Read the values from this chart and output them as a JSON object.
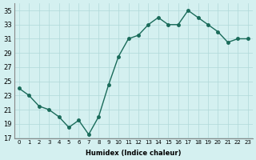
{
  "x": [
    0,
    1,
    2,
    3,
    4,
    5,
    6,
    7,
    8,
    9,
    10,
    11,
    12,
    13,
    14,
    15,
    16,
    17,
    18,
    19,
    20,
    21,
    22,
    23
  ],
  "y": [
    24.0,
    23.0,
    21.5,
    21.0,
    20.0,
    18.5,
    19.5,
    17.5,
    20.0,
    24.5,
    28.5,
    31.0,
    31.5,
    33.0,
    34.0,
    33.0,
    33.0,
    35.0,
    34.0,
    33.0,
    32.0,
    30.5,
    31.0,
    31.0
  ],
  "xlabel": "Humidex (Indice chaleur)",
  "ylim": [
    17,
    36
  ],
  "xlim": [
    -0.5,
    23.5
  ],
  "yticks": [
    17,
    19,
    21,
    23,
    25,
    27,
    29,
    31,
    33,
    35
  ],
  "xticks": [
    0,
    1,
    2,
    3,
    4,
    5,
    6,
    7,
    8,
    9,
    10,
    11,
    12,
    13,
    14,
    15,
    16,
    17,
    18,
    19,
    20,
    21,
    22,
    23
  ],
  "xtick_labels": [
    "0",
    "1",
    "2",
    "3",
    "4",
    "5",
    "6",
    "7",
    "8",
    "9",
    "10",
    "11",
    "12",
    "13",
    "14",
    "15",
    "16",
    "17",
    "18",
    "19",
    "20",
    "21",
    "22",
    "23"
  ],
  "line_color": "#1a6b5a",
  "marker_color": "#1a6b5a",
  "bg_color": "#d4f0f0",
  "grid_color": "#b0d8d8",
  "fig_bg": "#d4f0f0"
}
